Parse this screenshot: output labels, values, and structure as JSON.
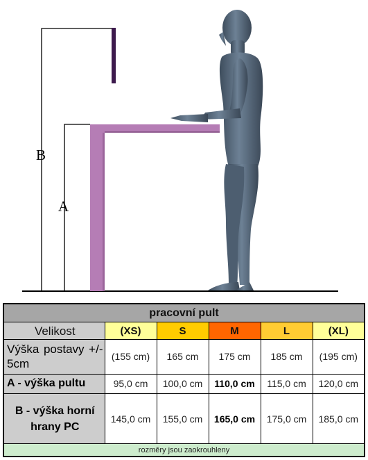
{
  "diagram": {
    "label_a": "A",
    "label_b": "B",
    "colors": {
      "desk": "#b57db5",
      "screen_edge": "#3d1a4d",
      "person": "#5a6d80",
      "line": "#000000"
    }
  },
  "table": {
    "title": "pracovní pult",
    "size_label": "Velikost",
    "sizes": [
      {
        "label": "(XS)",
        "color": "#ffff99"
      },
      {
        "label": "S",
        "color": "#ffcc00"
      },
      {
        "label": "M",
        "color": "#ff6600"
      },
      {
        "label": "L",
        "color": "#ffcc33"
      },
      {
        "label": "(XL)",
        "color": "#ffff99"
      }
    ],
    "rows": [
      {
        "label": "Výška postavy +/- 5cm",
        "values": [
          "(155 cm)",
          "165 cm",
          "175 cm",
          "185 cm",
          "(195 cm)"
        ]
      },
      {
        "label": "A - výška pultu",
        "values": [
          "95,0 cm",
          "100,0 cm",
          "110,0 cm",
          "115,0 cm",
          "120,0 cm"
        ]
      },
      {
        "label": "B - výška horní hrany PC",
        "values": [
          "145,0 cm",
          "155,0 cm",
          "165,0 cm",
          "175,0 cm",
          "185,0 cm"
        ]
      }
    ],
    "footer": "rozměry jsou zaokrouhleny"
  }
}
